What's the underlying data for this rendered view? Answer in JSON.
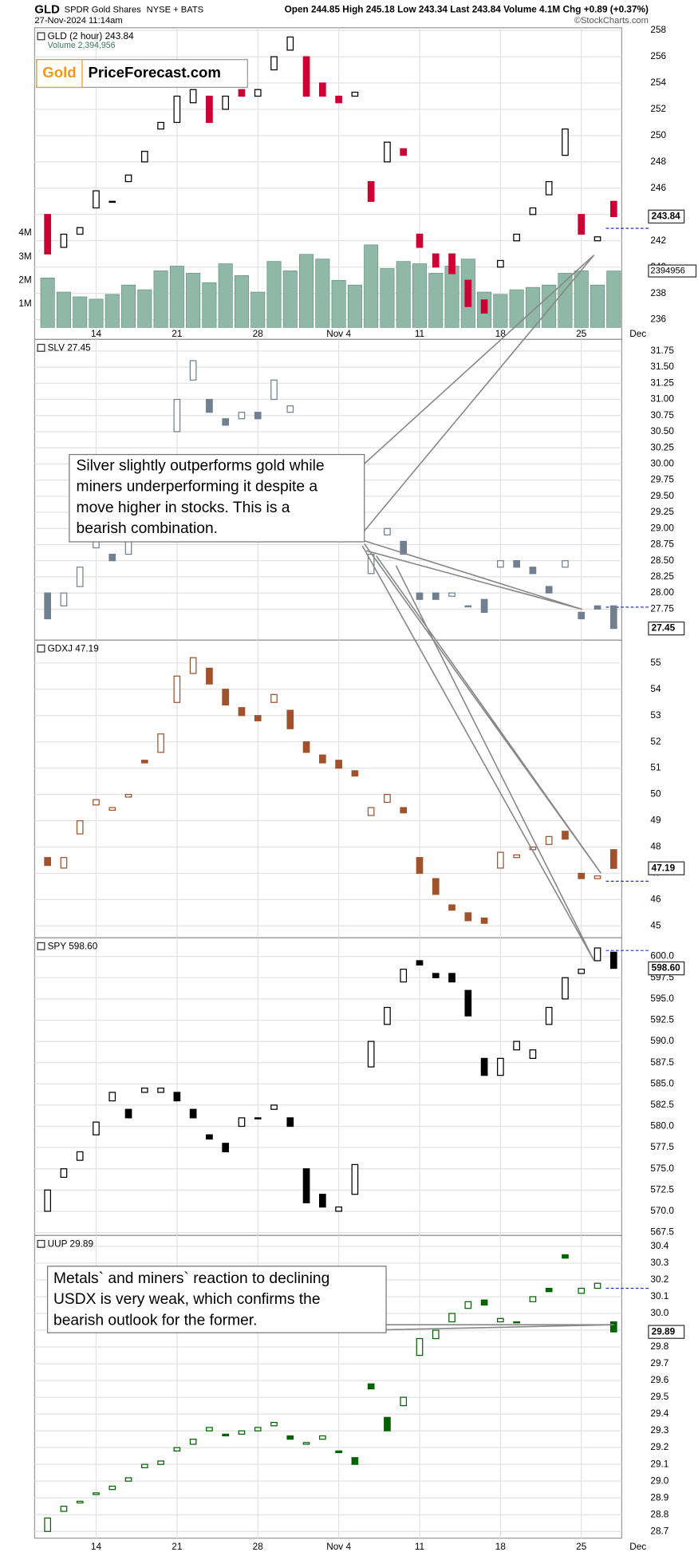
{
  "header": {
    "symbol": "GLD",
    "name": "SPDR Gold Shares",
    "exchange": "NYSE + BATS",
    "timestamp": "27-Nov-2024 11:14am",
    "quote": "Open 244.85 High 245.18 Low 243.34 Last 243.84 Volume 4.1M Chg +0.89 (+0.37%)",
    "source": "©StockCharts.com"
  },
  "logo": {
    "word": "Gold",
    "site": "PriceForecast.com"
  },
  "annotations": [
    {
      "lines": [
        "Silver slightly outperforms gold while",
        "miners underperforming it despite a",
        "move higher in stocks. This is a",
        "bearish combination."
      ]
    },
    {
      "lines": [
        "Metals` and miners` reaction to declining",
        "USDX is very weak, which confirms the",
        "bearish outlook for the former."
      ]
    }
  ],
  "chart_data": [
    {
      "type": "candlestick",
      "title": "GLD (2 hour) 243.84",
      "color_up": "#000000",
      "color_down": "#cc0033",
      "x": [
        0,
        1,
        2,
        3,
        4,
        5,
        6,
        7,
        8,
        9,
        10,
        11,
        12,
        13,
        14,
        15,
        16,
        17,
        18,
        19,
        20,
        21,
        22,
        23,
        24,
        25,
        26,
        27,
        28,
        29,
        30,
        31,
        32,
        33,
        34,
        35
      ],
      "open": [
        244,
        241.5,
        242.5,
        244.5,
        245,
        246.5,
        248,
        250.5,
        251,
        252.5,
        253,
        252,
        253.5,
        253,
        255,
        256.5,
        256,
        254,
        253,
        253,
        246.5,
        248,
        249,
        242.5,
        241,
        241,
        239,
        237.5,
        240,
        242,
        244,
        245.5,
        248.5,
        244,
        242,
        245
      ],
      "close": [
        241,
        242.5,
        243,
        245.8,
        245,
        247,
        248.8,
        251,
        253,
        253.5,
        251,
        253,
        253,
        253.5,
        256,
        257.5,
        253,
        253,
        252.5,
        253.3,
        245,
        249.5,
        248.5,
        241.5,
        240,
        239.5,
        237,
        236.5,
        240.5,
        242.5,
        244.5,
        246.5,
        250.5,
        242.5,
        242.3,
        243.84
      ],
      "xlim": [
        -0.8,
        35.5
      ],
      "xticks": [
        {
          "value": 3,
          "label": "14"
        },
        {
          "value": 8,
          "label": "21"
        },
        {
          "value": 13,
          "label": "28"
        },
        {
          "value": 18,
          "label": "Nov 4"
        },
        {
          "value": 23,
          "label": "11"
        },
        {
          "value": 28,
          "label": "18"
        },
        {
          "value": 33,
          "label": "25"
        },
        {
          "value": 36.5,
          "label": "Dec"
        }
      ],
      "ylim": [
        234.5,
        258.2
      ],
      "yticks": [
        236,
        238,
        240,
        242,
        244,
        246,
        248,
        250,
        252,
        254,
        256,
        258
      ],
      "last": 243.84,
      "ref_line": 242.95,
      "volume_label": "Volume 2,394,956",
      "volume_color": "#8fb8a8",
      "volume": [
        2100000,
        1500000,
        1300000,
        1200000,
        1400000,
        1800000,
        1600000,
        2400000,
        2600000,
        2300000,
        1900000,
        2700000,
        2200000,
        1500000,
        2800000,
        2400000,
        3100000,
        2900000,
        2000000,
        1800000,
        3500000,
        2500000,
        2800000,
        2700000,
        2300000,
        2600000,
        2900000,
        1500000,
        1400000,
        1600000,
        1700000,
        1800000,
        2300000,
        2400000,
        1800000,
        2394956
      ],
      "volume_ylim": [
        0,
        12700000
      ],
      "volume_ticks": [
        {
          "value": 1000000,
          "label": "1M"
        },
        {
          "value": 2000000,
          "label": "2M"
        },
        {
          "value": 3000000,
          "label": "3M"
        },
        {
          "value": 4000000,
          "label": "4M"
        }
      ],
      "volume_last": 2394956
    },
    {
      "type": "candlestick",
      "title": "SLV 27.45",
      "color_up": "#708090",
      "color_down": "#708090",
      "x": [
        0,
        1,
        2,
        3,
        4,
        5,
        6,
        7,
        8,
        9,
        10,
        11,
        12,
        13,
        14,
        15,
        16,
        17,
        18,
        19,
        20,
        21,
        22,
        23,
        24,
        25,
        26,
        27,
        28,
        29,
        30,
        31,
        32,
        33,
        34,
        35
      ],
      "open": [
        28.0,
        27.8,
        28.1,
        28.7,
        28.6,
        28.6,
        29.2,
        29.5,
        30.5,
        31.3,
        31.0,
        30.7,
        30.7,
        30.8,
        31.0,
        30.8,
        30.1,
        29.6,
        29.5,
        29.6,
        28.3,
        28.9,
        28.8,
        28.0,
        28.0,
        27.95,
        27.8,
        27.9,
        28.4,
        28.5,
        28.4,
        28.1,
        28.4,
        27.7,
        27.8,
        27.8
      ],
      "close": [
        27.6,
        28.0,
        28.4,
        28.9,
        28.5,
        28.8,
        29.4,
        29.8,
        31.0,
        31.6,
        30.8,
        30.6,
        30.8,
        30.7,
        31.3,
        30.9,
        29.8,
        29.5,
        29.5,
        29.8,
        28.6,
        29.0,
        28.6,
        27.9,
        27.9,
        28.0,
        27.8,
        27.7,
        28.5,
        28.4,
        28.3,
        28.0,
        28.5,
        27.6,
        27.75,
        27.45
      ],
      "xlim": [
        -0.8,
        35.5
      ],
      "xticks": [
        {
          "value": 3,
          "label": "14"
        },
        {
          "value": 8,
          "label": "21"
        },
        {
          "value": 13,
          "label": "28"
        },
        {
          "value": 18,
          "label": "Nov 4"
        },
        {
          "value": 23,
          "label": "11"
        },
        {
          "value": 28,
          "label": "18"
        },
        {
          "value": 33,
          "label": "25"
        },
        {
          "value": 36.5,
          "label": "Dec"
        }
      ],
      "ylim": [
        27.27,
        31.93
      ],
      "yticks": [
        {
          "value": 27.75,
          "label": "27.75"
        },
        {
          "value": 28,
          "label": "28.00"
        },
        {
          "value": 28.25,
          "label": "28.25"
        },
        {
          "value": 28.5,
          "label": "28.50"
        },
        {
          "value": 28.75,
          "label": "28.75"
        },
        {
          "value": 29,
          "label": "29.00"
        },
        {
          "value": 29.25,
          "label": "29.25"
        },
        {
          "value": 29.5,
          "label": "29.50"
        },
        {
          "value": 29.75,
          "label": "29.75"
        },
        {
          "value": 30,
          "label": "30.00"
        },
        {
          "value": 30.25,
          "label": "30.25"
        },
        {
          "value": 30.5,
          "label": "30.50"
        },
        {
          "value": 30.75,
          "label": "30.75"
        },
        {
          "value": 31,
          "label": "31.00"
        },
        {
          "value": 31.25,
          "label": "31.25"
        },
        {
          "value": 31.5,
          "label": "31.50"
        },
        {
          "value": 31.75,
          "label": "31.75"
        }
      ],
      "last": 27.45,
      "ref_line": 27.78
    },
    {
      "type": "candlestick",
      "title": "GDXJ 47.19",
      "color_up": "#a0522d",
      "color_down": "#a0522d",
      "x": [
        0,
        1,
        2,
        3,
        4,
        5,
        6,
        7,
        8,
        9,
        10,
        11,
        12,
        13,
        14,
        15,
        16,
        17,
        18,
        19,
        20,
        21,
        22,
        23,
        24,
        25,
        26,
        27,
        28,
        29,
        30,
        31,
        32,
        33,
        34,
        35
      ],
      "open": [
        47.6,
        47.2,
        48.5,
        49.6,
        49.4,
        49.9,
        51.3,
        51.6,
        53.5,
        54.6,
        54.8,
        54.0,
        53.3,
        53.0,
        53.5,
        53.2,
        52.0,
        51.5,
        51.3,
        50.9,
        49.2,
        49.7,
        49.5,
        47.6,
        46.8,
        45.8,
        45.5,
        45.3,
        47.2,
        47.6,
        47.9,
        48.1,
        48.6,
        47.0,
        46.8,
        47.9
      ],
      "close": [
        47.3,
        47.6,
        49,
        49.8,
        49.5,
        50.0,
        51.2,
        52.3,
        54.5,
        55.2,
        54.2,
        53.4,
        53.0,
        52.8,
        53.8,
        52.5,
        51.6,
        51.2,
        51.0,
        50.7,
        49.5,
        50.0,
        49.3,
        47.0,
        46.2,
        45.6,
        45.2,
        45.1,
        47.8,
        47.7,
        48.0,
        48.4,
        48.3,
        46.8,
        46.9,
        47.19
      ],
      "xlim": [
        -0.8,
        35.5
      ],
      "xticks": [
        {
          "value": 3,
          "label": "14"
        },
        {
          "value": 8,
          "label": "21"
        },
        {
          "value": 13,
          "label": "28"
        },
        {
          "value": 18,
          "label": "Nov 4"
        },
        {
          "value": 23,
          "label": "11"
        },
        {
          "value": 28,
          "label": "18"
        },
        {
          "value": 33,
          "label": "25"
        },
        {
          "value": 36.5,
          "label": "Dec"
        }
      ],
      "ylim": [
        44.55,
        55.87
      ],
      "yticks": [
        45,
        46,
        47,
        48,
        49,
        50,
        51,
        52,
        53,
        54,
        55
      ],
      "last": 47.19,
      "ref_line": 46.7
    },
    {
      "type": "candlestick",
      "title": "SPY 598.60",
      "color_up": "#000000",
      "color_down": "#000000",
      "x": [
        0,
        1,
        2,
        3,
        4,
        5,
        6,
        7,
        8,
        9,
        10,
        11,
        12,
        13,
        14,
        15,
        16,
        17,
        18,
        19,
        20,
        21,
        22,
        23,
        24,
        25,
        26,
        27,
        28,
        29,
        30,
        31,
        32,
        33,
        34,
        35
      ],
      "open": [
        570,
        574,
        576,
        579,
        583,
        582,
        584,
        584,
        584,
        582,
        579,
        578,
        580,
        581,
        582,
        581,
        575,
        572,
        570,
        572,
        587,
        592,
        597,
        599.5,
        598,
        598,
        596,
        588,
        586,
        589,
        588,
        592,
        595,
        598,
        599.5,
        600.5
      ],
      "close": [
        572.5,
        575,
        577,
        580.5,
        584,
        581,
        584.5,
        584.5,
        583,
        581,
        578.5,
        577,
        581,
        581,
        582.5,
        580,
        571,
        570.5,
        570.5,
        575.5,
        590,
        594,
        598.5,
        599,
        597.5,
        597,
        593,
        586,
        588,
        590,
        589,
        594,
        597.5,
        598.5,
        601,
        598.6
      ],
      "xlim": [
        -0.8,
        35.5
      ],
      "xticks": [
        {
          "value": 3,
          "label": "14"
        },
        {
          "value": 8,
          "label": "21"
        },
        {
          "value": 13,
          "label": "28"
        },
        {
          "value": 18,
          "label": "Nov 4"
        },
        {
          "value": 23,
          "label": "11"
        },
        {
          "value": 28,
          "label": "18"
        },
        {
          "value": 33,
          "label": "25"
        },
        {
          "value": 36.5,
          "label": "Dec"
        }
      ],
      "ylim": [
        567.15,
        602.2
      ],
      "yticks": [
        567.5,
        {
          "value": 570,
          "label": "570.0"
        },
        572.5,
        {
          "value": 575,
          "label": "575.0"
        },
        577.5,
        {
          "value": 580,
          "label": "580.0"
        },
        582.5,
        {
          "value": 585,
          "label": "585.0"
        },
        587.5,
        {
          "value": 590,
          "label": "590.0"
        },
        592.5,
        {
          "value": 595,
          "label": "595.0"
        },
        597.5,
        {
          "value": 600,
          "label": "600.0"
        }
      ],
      "last": {
        "value": 598.6,
        "label": "598.60"
      },
      "ref_line": 600.7
    },
    {
      "type": "candlestick",
      "title": "UUP 29.89",
      "color_up": "#006400",
      "color_down": "#006400",
      "x": [
        0,
        1,
        2,
        3,
        4,
        5,
        6,
        7,
        8,
        9,
        10,
        11,
        12,
        13,
        14,
        15,
        16,
        17,
        18,
        19,
        20,
        21,
        22,
        23,
        24,
        25,
        26,
        27,
        28,
        29,
        30,
        31,
        32,
        33,
        34,
        35
      ],
      "open": [
        28.7,
        28.82,
        28.87,
        28.92,
        28.95,
        29.0,
        29.08,
        29.1,
        29.18,
        29.22,
        29.3,
        29.28,
        29.28,
        29.3,
        29.33,
        29.27,
        29.22,
        29.25,
        29.18,
        29.14,
        29.58,
        29.38,
        29.45,
        29.75,
        29.85,
        29.95,
        30.03,
        30.08,
        29.95,
        29.95,
        30.07,
        30.15,
        30.35,
        30.12,
        30.15,
        29.95
      ],
      "close": [
        28.78,
        28.85,
        28.88,
        28.93,
        28.97,
        29.02,
        29.1,
        29.12,
        29.2,
        29.25,
        29.32,
        29.27,
        29.3,
        29.32,
        29.35,
        29.25,
        29.23,
        29.27,
        29.17,
        29.1,
        29.55,
        29.3,
        29.5,
        29.85,
        29.9,
        30.0,
        30.07,
        30.05,
        29.97,
        29.95,
        30.1,
        30.13,
        30.33,
        30.15,
        30.18,
        29.89
      ],
      "xlim": [
        -0.8,
        35.5
      ],
      "xticks": [
        {
          "value": 3,
          "label": "14"
        },
        {
          "value": 8,
          "label": "21"
        },
        {
          "value": 13,
          "label": "28"
        },
        {
          "value": 18,
          "label": "Nov 4"
        },
        {
          "value": 23,
          "label": "11"
        },
        {
          "value": 28,
          "label": "18"
        },
        {
          "value": 33,
          "label": "25"
        },
        {
          "value": 36.5,
          "label": "Dec"
        }
      ],
      "ylim": [
        28.66,
        30.465
      ],
      "yticks": [
        28.7,
        28.8,
        28.9,
        {
          "value": 29,
          "label": "29.0"
        },
        29.1,
        29.2,
        29.3,
        29.4,
        29.5,
        29.6,
        29.7,
        29.8,
        29.9,
        {
          "value": 30,
          "label": "30.0"
        },
        30.1,
        30.2,
        30.3,
        30.4
      ],
      "last": 29.89,
      "ref_line": 30.15
    }
  ]
}
